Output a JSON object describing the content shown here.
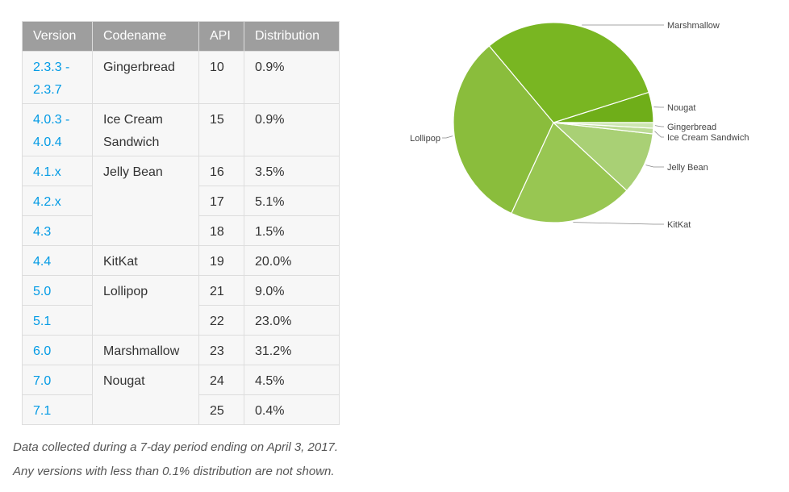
{
  "table": {
    "headers": [
      "Version",
      "Codename",
      "API",
      "Distribution"
    ],
    "rows": [
      {
        "version": "2.3.3 - 2.3.7",
        "codename": "Gingerbread",
        "api": "10",
        "dist": "0.9%"
      },
      {
        "version": "4.0.3 - 4.0.4",
        "codename": "Ice Cream Sandwich",
        "api": "15",
        "dist": "0.9%"
      },
      {
        "version": "4.1.x",
        "codename": "Jelly Bean",
        "api": "16",
        "dist": "3.5%"
      },
      {
        "version": "4.2.x",
        "codename": "",
        "api": "17",
        "dist": "5.1%"
      },
      {
        "version": "4.3",
        "codename": "",
        "api": "18",
        "dist": "1.5%"
      },
      {
        "version": "4.4",
        "codename": "KitKat",
        "api": "19",
        "dist": "20.0%"
      },
      {
        "version": "5.0",
        "codename": "Lollipop",
        "api": "21",
        "dist": "9.0%"
      },
      {
        "version": "5.1",
        "codename": "",
        "api": "22",
        "dist": "23.0%"
      },
      {
        "version": "6.0",
        "codename": "Marshmallow",
        "api": "23",
        "dist": "31.2%"
      },
      {
        "version": "7.0",
        "codename": "Nougat",
        "api": "24",
        "dist": "4.5%"
      },
      {
        "version": "7.1",
        "codename": "",
        "api": "25",
        "dist": "0.4%"
      }
    ]
  },
  "footnotes": [
    "Data collected during a 7-day period ending on April 3, 2017.",
    "Any versions with less than 0.1% distribution are not shown."
  ],
  "chart_data": {
    "type": "pie",
    "title": "",
    "start_angle_deg": 0,
    "direction": "counterclockwise-first",
    "categories": [
      "Nougat",
      "Marshmallow",
      "Lollipop",
      "KitKat",
      "Jelly Bean",
      "Ice Cream Sandwich",
      "Gingerbread"
    ],
    "values": [
      4.9,
      31.2,
      32.0,
      20.0,
      10.1,
      0.9,
      0.9
    ],
    "colors": [
      "#6fae19",
      "#79b622",
      "#8abd3c",
      "#98c652",
      "#a9d075",
      "#bcdb95",
      "#cde6b1"
    ],
    "legend": "leader-line labels"
  }
}
